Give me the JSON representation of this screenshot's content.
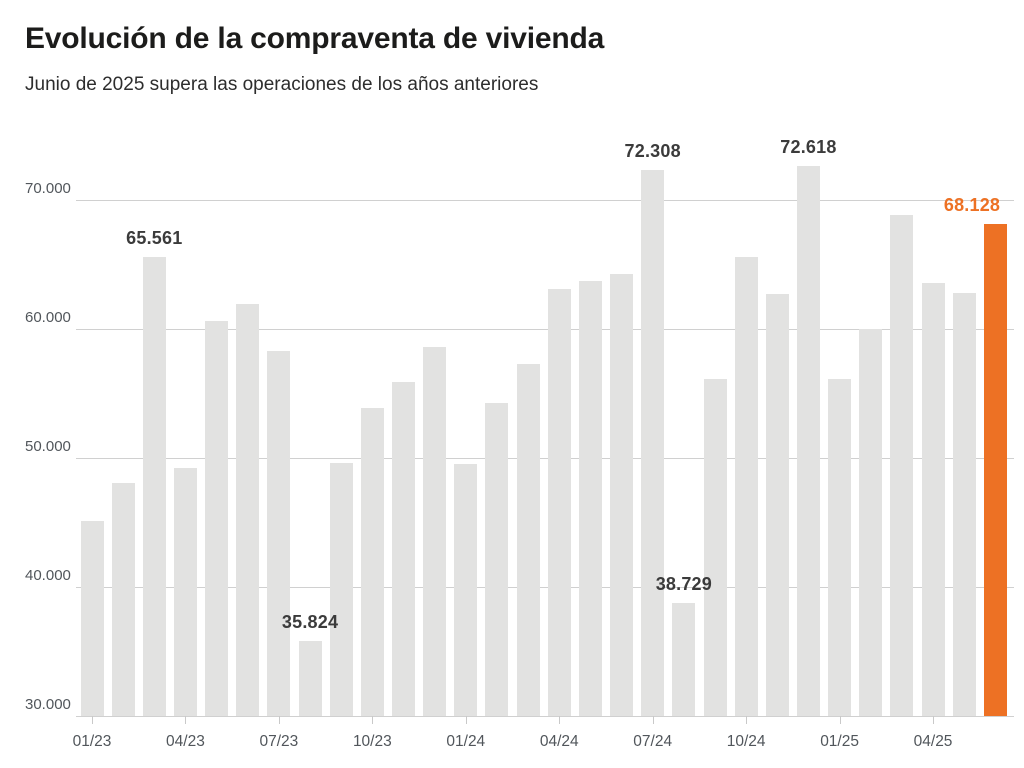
{
  "header": {
    "title": "Evolución de la compraventa de vivienda",
    "subtitle": "Junio de 2025 supera las operaciones de los años anteriores"
  },
  "chart_data": {
    "type": "bar",
    "title": "Evolución de la compraventa de vivienda",
    "subtitle": "Junio de 2025 supera las operaciones de los años anteriores",
    "xlabel": "",
    "ylabel": "",
    "ylim": [
      30000,
      75000
    ],
    "grid": "horizontal",
    "legend": "none",
    "categories": [
      "01/23",
      "02/23",
      "03/23",
      "04/23",
      "05/23",
      "06/23",
      "07/23",
      "08/23",
      "09/23",
      "10/23",
      "11/23",
      "12/23",
      "01/24",
      "02/24",
      "03/24",
      "04/24",
      "05/24",
      "06/24",
      "07/24",
      "08/24",
      "09/24",
      "10/24",
      "11/24",
      "12/24",
      "01/25",
      "02/25",
      "03/25",
      "04/25",
      "05/25",
      "06/25"
    ],
    "values": [
      45100,
      48100,
      65561,
      49200,
      60600,
      61900,
      58300,
      35824,
      49600,
      53900,
      55900,
      58600,
      49500,
      54300,
      57300,
      63100,
      63700,
      64300,
      72308,
      38729,
      56100,
      65600,
      62700,
      72618,
      56100,
      60000,
      68800,
      63600,
      62800,
      68128
    ],
    "yticks": [
      {
        "value": 30000,
        "label": "30.000"
      },
      {
        "value": 40000,
        "label": "40.000"
      },
      {
        "value": 50000,
        "label": "50.000"
      },
      {
        "value": 60000,
        "label": "60.000"
      },
      {
        "value": 70000,
        "label": "70.000"
      }
    ],
    "xticks": [
      {
        "index": 0,
        "label": "01/23"
      },
      {
        "index": 3,
        "label": "04/23"
      },
      {
        "index": 6,
        "label": "07/23"
      },
      {
        "index": 9,
        "label": "10/23"
      },
      {
        "index": 12,
        "label": "01/24"
      },
      {
        "index": 15,
        "label": "04/24"
      },
      {
        "index": 18,
        "label": "07/24"
      },
      {
        "index": 21,
        "label": "10/24"
      },
      {
        "index": 24,
        "label": "01/25"
      },
      {
        "index": 27,
        "label": "04/25"
      }
    ],
    "annotations": [
      {
        "index": 2,
        "label": "65.561"
      },
      {
        "index": 7,
        "label": "35.824"
      },
      {
        "index": 18,
        "label": "72.308"
      },
      {
        "index": 19,
        "label": "38.729"
      },
      {
        "index": 23,
        "label": "72.618"
      },
      {
        "index": 29,
        "label": "68.128"
      }
    ],
    "highlight_index": 29,
    "colors": {
      "bar": "#e2e2e1",
      "highlight_bar": "#ed7124",
      "annotation_text": "#3b3b3b",
      "highlight_annotation_text": "#ed7124",
      "gridline": "#d0d0d0",
      "axis_text": "#51565b",
      "title_text": "#1c1c1b",
      "subtitle_text": "#2d2d2d",
      "background": "#ffffff"
    }
  }
}
